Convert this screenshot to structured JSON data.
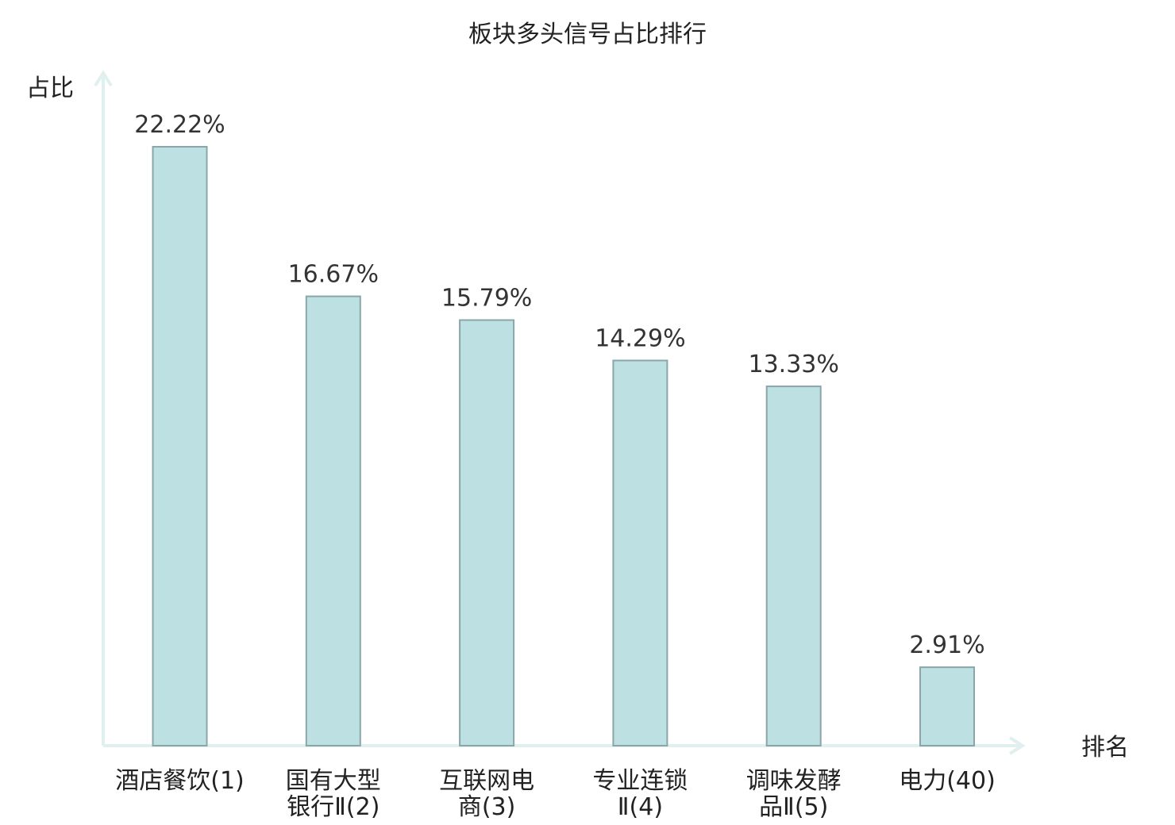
{
  "chart_data": {
    "type": "bar",
    "title": "板块多头信号占比排行",
    "xlabel": "排名",
    "ylabel": "占比",
    "categories": [
      [
        "酒店餐饮(1)"
      ],
      [
        "国有大型",
        "银行Ⅱ(2)"
      ],
      [
        "互联网电",
        "商(3)"
      ],
      [
        "专业连锁",
        "Ⅱ(4)"
      ],
      [
        "调味发酵",
        "品Ⅱ(5)"
      ],
      [
        "电力(40)"
      ]
    ],
    "values": [
      22.22,
      16.67,
      15.79,
      14.29,
      13.33,
      2.91
    ],
    "value_labels": [
      "22.22%",
      "16.67%",
      "15.79%",
      "14.29%",
      "13.33%",
      "2.91%"
    ],
    "highlight_category_index": 5,
    "ylim": [
      0,
      25
    ],
    "grid": false,
    "colors": {
      "bar_fill": "#bde0e2",
      "bar_stroke": "#8aa6a8",
      "axis": "#dff0ee",
      "highlight_label": "#e60000",
      "text": "#222222",
      "value_text": "#333333"
    }
  }
}
